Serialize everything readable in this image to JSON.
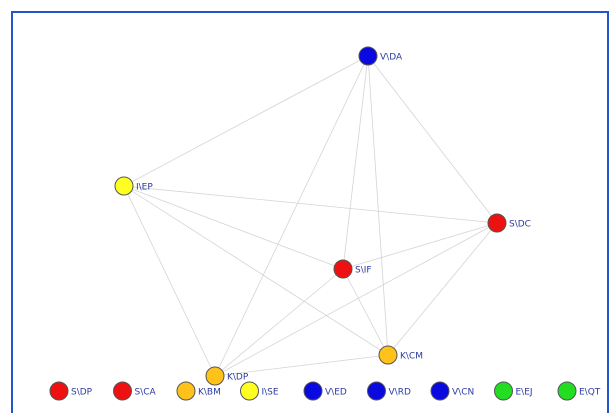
{
  "nodes": [
    {
      "label": "V\\DA",
      "color": "#0a0ae0"
    },
    {
      "label": "I\\EP",
      "color": "#ffff22"
    },
    {
      "label": "S\\DC",
      "color": "#ee1111"
    },
    {
      "label": "S\\IF",
      "color": "#ee1111"
    },
    {
      "label": "K\\CM",
      "color": "#ffc21a"
    },
    {
      "label": "K\\DP",
      "color": "#ffc21a"
    }
  ],
  "legend": [
    {
      "label": "S\\DP",
      "color": "#ee1111"
    },
    {
      "label": "S\\CA",
      "color": "#ee1111"
    },
    {
      "label": "K\\BM",
      "color": "#ffc21a"
    },
    {
      "label": "I\\SE",
      "color": "#ffff22"
    },
    {
      "label": "V\\ED",
      "color": "#0a0ae0"
    },
    {
      "label": "V\\RD",
      "color": "#0a0ae0"
    },
    {
      "label": "V\\CN",
      "color": "#0a0ae0"
    },
    {
      "label": "E\\EJ",
      "color": "#22dd22"
    },
    {
      "label": "E\\QT",
      "color": "#22dd22"
    }
  ]
}
